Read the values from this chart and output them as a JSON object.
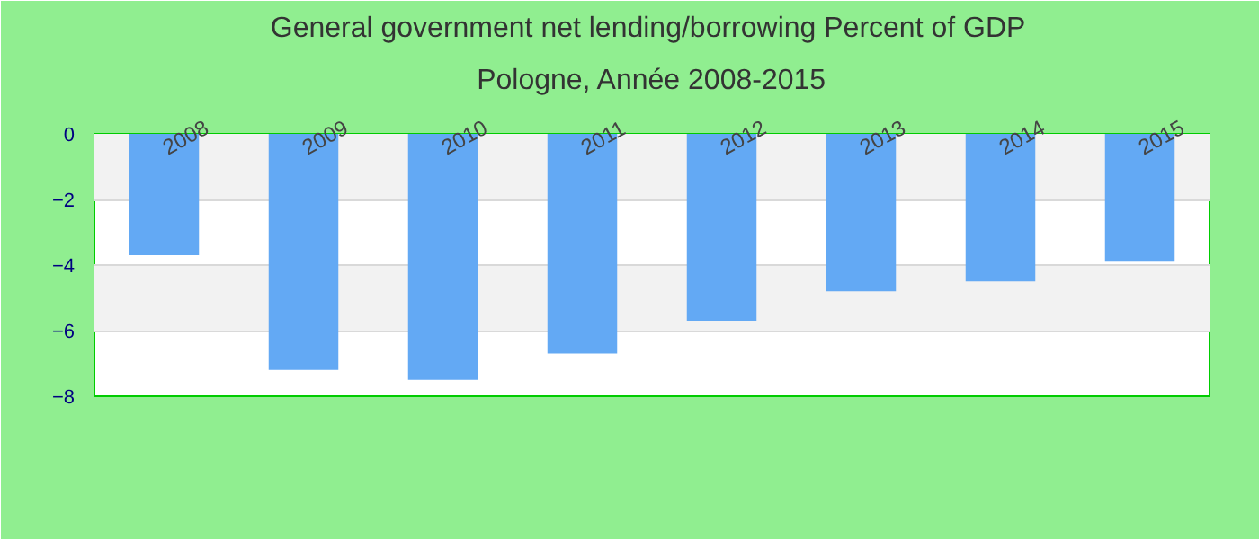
{
  "chart_data": {
    "type": "bar",
    "title": "General government net lending/borrowing  Percent of GDP",
    "subtitle": "Pologne, Année 2008-2015",
    "categories": [
      "2008",
      "2009",
      "2010",
      "2011",
      "2012",
      "2013",
      "2014",
      "2015"
    ],
    "values": [
      -3.7,
      -7.2,
      -7.5,
      -6.7,
      -5.7,
      -4.8,
      -4.5,
      -3.9
    ],
    "color": "#63a9f4",
    "ylim": [
      -8,
      0
    ],
    "yticks": [
      0,
      -2,
      -4,
      -6,
      -8
    ],
    "grid": "y"
  }
}
